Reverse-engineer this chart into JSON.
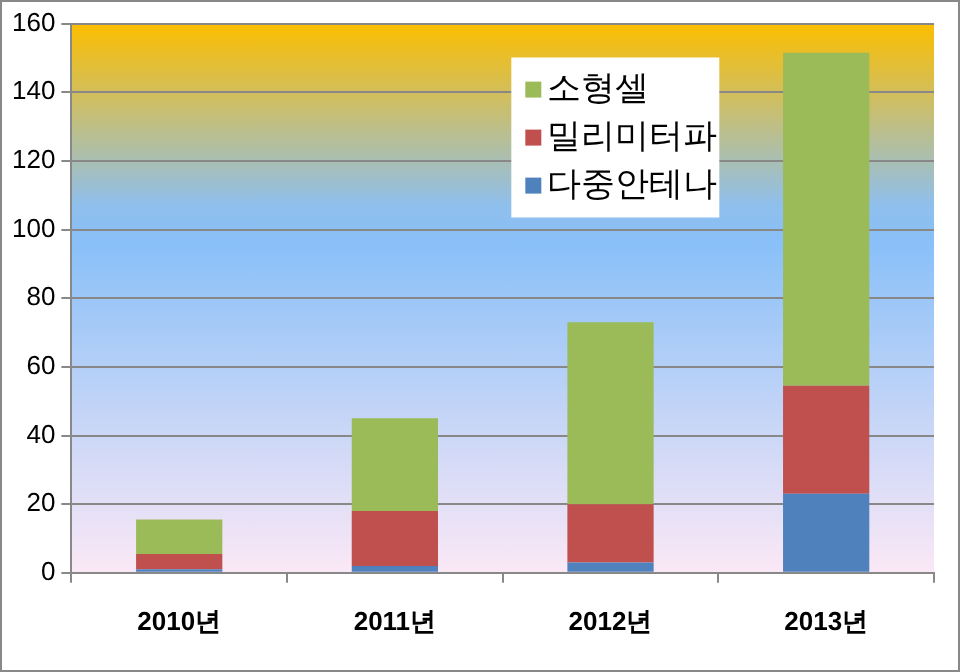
{
  "chart_data": {
    "type": "bar",
    "stacked": true,
    "categories": [
      "2010년",
      "2011년",
      "2012년",
      "2013년"
    ],
    "series": [
      {
        "name": "다중안테나",
        "color": "#4f81bd",
        "values": [
          1,
          2,
          3,
          23
        ]
      },
      {
        "name": "밀리미터파",
        "color": "#c0504d",
        "values": [
          4.5,
          16,
          17,
          31.5
        ]
      },
      {
        "name": "소형셀",
        "color": "#9bbb59",
        "values": [
          10,
          27,
          53,
          97
        ]
      }
    ],
    "ylim": [
      0,
      160
    ],
    "yticks": [
      0,
      20,
      40,
      60,
      80,
      100,
      120,
      140,
      160
    ],
    "grid": "y",
    "legend": "top right"
  }
}
